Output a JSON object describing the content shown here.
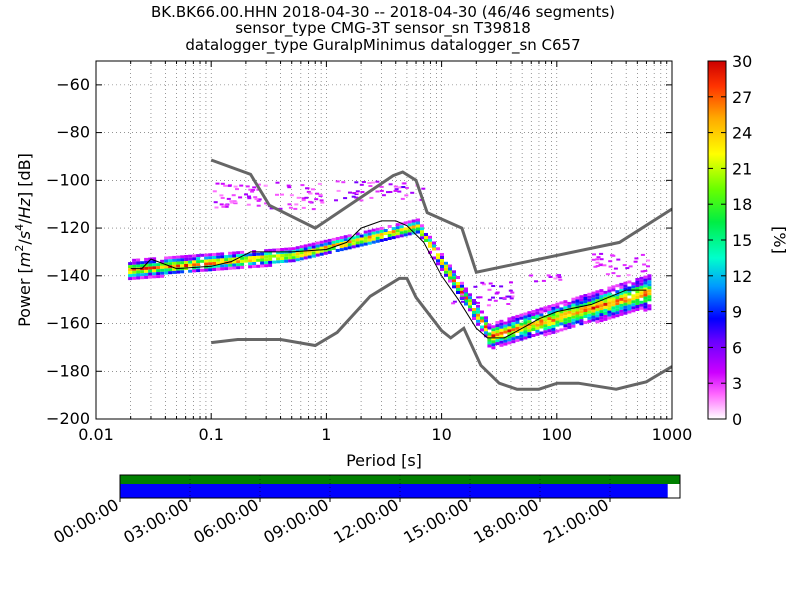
{
  "title_lines": [
    "BK.BK66.00.HHN   2018-04-30 -- 2018-04-30  (46/46 segments)",
    "sensor_type CMG-3T sensor_sn T39818",
    "datalogger_type GuralpMinimus datalogger_sn C657"
  ],
  "chart_data": {
    "type": "heatmap",
    "title": "BK.BK66.00.HHN   2018-04-30 -- 2018-04-30  (46/46 segments)",
    "xlabel": "Period [s]",
    "ylabel": "Power [m²/s⁴/Hz] [dB]",
    "ylabel_parts": {
      "prefix": "Power [",
      "unit_m": "m",
      "exp_2": "2",
      "slash1": "/",
      "unit_s": "s",
      "exp_4": "4",
      "slash2": "/",
      "unit_Hz": "Hz",
      "suffix": "] [dB]"
    },
    "x_scale": "log",
    "xlim": [
      0.01,
      1000
    ],
    "ylim": [
      -200,
      -50
    ],
    "x_ticks": [
      0.01,
      0.1,
      1,
      10,
      100,
      1000
    ],
    "x_tick_labels": [
      "0.01",
      "0.1",
      "1",
      "10",
      "100",
      "1000"
    ],
    "y_ticks": [
      -200,
      -180,
      -160,
      -140,
      -120,
      -100,
      -80,
      -60
    ],
    "y_tick_labels": [
      "−200",
      "−180",
      "−160",
      "−140",
      "−120",
      "−100",
      "−80",
      "−60"
    ],
    "grid": true,
    "colorbar": {
      "label": "[%]",
      "range": [
        0,
        30
      ],
      "ticks": [
        0,
        3,
        6,
        9,
        12,
        15,
        18,
        21,
        24,
        27,
        30
      ],
      "tick_labels": [
        "0",
        "3",
        "6",
        "9",
        "12",
        "15",
        "18",
        "21",
        "24",
        "27",
        "30"
      ]
    },
    "noise_model_high": [
      [
        0.1,
        -91.5
      ],
      [
        0.22,
        -97.5
      ],
      [
        0.32,
        -110.5
      ],
      [
        0.8,
        -120
      ],
      [
        3.8,
        -98
      ],
      [
        4.6,
        -96.5
      ],
      [
        6,
        -100
      ],
      [
        7.5,
        -113.5
      ],
      [
        15,
        -120
      ],
      [
        20,
        -138.5
      ],
      [
        350,
        -126
      ],
      [
        1000,
        -112
      ]
    ],
    "noise_model_low": [
      [
        0.1,
        -168
      ],
      [
        0.17,
        -166.7
      ],
      [
        0.4,
        -166.7
      ],
      [
        0.8,
        -169.2
      ],
      [
        1.24,
        -163.7
      ],
      [
        2.4,
        -148.6
      ],
      [
        4.3,
        -141.1
      ],
      [
        5,
        -141.1
      ],
      [
        6,
        -149
      ],
      [
        10,
        -163
      ],
      [
        12,
        -166
      ],
      [
        15.6,
        -162
      ],
      [
        21.9,
        -177.5
      ],
      [
        31.6,
        -185
      ],
      [
        45,
        -187.5
      ],
      [
        70,
        -187.5
      ],
      [
        101,
        -185
      ],
      [
        154,
        -185
      ],
      [
        328,
        -187.5
      ],
      [
        600,
        -184.4
      ],
      [
        1000,
        -178
      ]
    ],
    "mode_line": [
      [
        0.02,
        -137
      ],
      [
        0.025,
        -137
      ],
      [
        0.03,
        -133
      ],
      [
        0.05,
        -137
      ],
      [
        0.1,
        -136
      ],
      [
        0.15,
        -134
      ],
      [
        0.22,
        -130
      ],
      [
        0.5,
        -130
      ],
      [
        1,
        -129
      ],
      [
        1.5,
        -126
      ],
      [
        2,
        -120
      ],
      [
        3,
        -117
      ],
      [
        4,
        -117
      ],
      [
        5,
        -119
      ],
      [
        7,
        -126
      ],
      [
        10,
        -140
      ],
      [
        14,
        -150
      ],
      [
        20,
        -162
      ],
      [
        25,
        -166
      ],
      [
        35,
        -166
      ],
      [
        50,
        -162
      ],
      [
        70,
        -158
      ],
      [
        100,
        -155
      ],
      [
        200,
        -152
      ],
      [
        400,
        -146
      ],
      [
        600,
        -146
      ]
    ],
    "density_bands": [
      {
        "x": [
          0.019,
          0.5
        ],
        "center": [
          -137,
          -131
        ],
        "width": [
          8,
          6
        ]
      },
      {
        "x": [
          0.5,
          6
        ],
        "center": [
          -131,
          -119
        ],
        "width": [
          6,
          6
        ]
      },
      {
        "x": [
          6,
          25
        ],
        "center": [
          -119,
          -163
        ],
        "width": [
          6,
          8
        ]
      },
      {
        "x": [
          25,
          650
        ],
        "center": [
          -165,
          -146
        ],
        "width": [
          10,
          14
        ]
      }
    ],
    "sparse_clusters": [
      {
        "x": [
          0.1,
          0.9
        ],
        "y": [
          -112,
          -100
        ],
        "level": 2
      },
      {
        "x": [
          1,
          7
        ],
        "y": [
          -108,
          -100
        ],
        "level": 3
      },
      {
        "x": [
          12,
          40
        ],
        "y": [
          -152,
          -142
        ],
        "level": 3
      },
      {
        "x": [
          40,
          120
        ],
        "y": [
          -142,
          -139
        ],
        "level": 2
      },
      {
        "x": [
          200,
          600
        ],
        "y": [
          -140,
          -130
        ],
        "level": 2
      }
    ]
  },
  "timeline": {
    "labels": [
      "00:00:00",
      "03:00:00",
      "06:00:00",
      "09:00:00",
      "12:00:00",
      "15:00:00",
      "18:00:00",
      "21:00:00"
    ],
    "data_coverage_fraction": 0.978,
    "gap_coverage_fraction": 1.0,
    "colors": {
      "data": "#0000ff",
      "gap_bar": "#008000"
    }
  },
  "colors": {
    "noise_model": "#666666",
    "mode_line": "#000000",
    "grid": "#555555"
  }
}
